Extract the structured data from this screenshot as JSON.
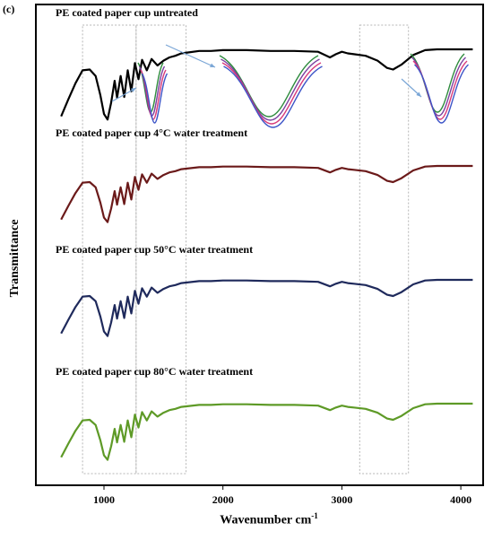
{
  "panel_label": "(c)",
  "colors": {
    "untreated": "#000000",
    "water_4C": "#6b1a1a",
    "water_50C": "#1f2a5c",
    "water_80C": "#5e9a27",
    "inset_lines": [
      "#2e8b3e",
      "#7b3fa0",
      "#d83a7a",
      "#3d55c8"
    ],
    "guide_box": "#b5b5b5",
    "arrow": "#7aa6d6"
  },
  "chart_data": {
    "type": "line",
    "title": "",
    "xlabel": "Wavenumber",
    "xlabel_unit": "cm",
    "xlabel_unit_exp": "-1",
    "ylabel": "Transmittance",
    "xlim": [
      600,
      4150
    ],
    "xticks": [
      1000,
      2000,
      3000,
      4000
    ],
    "y_ticks_shown": false,
    "grid": false,
    "guide_boxes": [
      [
        820,
        1270
      ],
      [
        1270,
        1690
      ],
      [
        3150,
        3560
      ]
    ],
    "insets": [
      "1000 region zoom",
      "1500 region zoom",
      "3400 region zoom"
    ],
    "series": [
      {
        "name": "PE coated paper cup untreated",
        "color_key": "untreated",
        "x": [
          640,
          700,
          760,
          820,
          880,
          930,
          970,
          1000,
          1030,
          1060,
          1090,
          1110,
          1140,
          1170,
          1200,
          1230,
          1260,
          1290,
          1320,
          1360,
          1400,
          1450,
          1500,
          1550,
          1600,
          1650,
          1700,
          1800,
          1900,
          2000,
          2200,
          2400,
          2600,
          2800,
          2900,
          2950,
          3000,
          3050,
          3100,
          3200,
          3300,
          3380,
          3430,
          3500,
          3600,
          3700,
          3800,
          3900,
          4000,
          4100
        ],
        "y": [
          0.12,
          0.33,
          0.53,
          0.69,
          0.7,
          0.62,
          0.38,
          0.15,
          0.08,
          0.29,
          0.56,
          0.35,
          0.62,
          0.36,
          0.69,
          0.43,
          0.78,
          0.58,
          0.82,
          0.69,
          0.83,
          0.75,
          0.81,
          0.85,
          0.87,
          0.9,
          0.91,
          0.93,
          0.93,
          0.94,
          0.94,
          0.93,
          0.93,
          0.92,
          0.85,
          0.89,
          0.92,
          0.9,
          0.89,
          0.87,
          0.81,
          0.72,
          0.7,
          0.76,
          0.88,
          0.94,
          0.95,
          0.95,
          0.95,
          0.95
        ]
      },
      {
        "name": "PE coated paper cup 4°C water treatment",
        "color_key": "water_4C",
        "x": [
          640,
          700,
          760,
          820,
          880,
          930,
          970,
          1000,
          1030,
          1060,
          1090,
          1110,
          1140,
          1170,
          1200,
          1230,
          1260,
          1290,
          1320,
          1360,
          1400,
          1450,
          1500,
          1550,
          1600,
          1650,
          1700,
          1800,
          1900,
          2000,
          2200,
          2400,
          2600,
          2800,
          2900,
          2950,
          3000,
          3050,
          3100,
          3200,
          3300,
          3380,
          3430,
          3500,
          3600,
          3700,
          3800,
          3900,
          4000,
          4100
        ],
        "y": [
          0.12,
          0.33,
          0.53,
          0.69,
          0.7,
          0.62,
          0.38,
          0.15,
          0.08,
          0.29,
          0.56,
          0.35,
          0.62,
          0.36,
          0.69,
          0.43,
          0.78,
          0.58,
          0.82,
          0.69,
          0.83,
          0.75,
          0.81,
          0.85,
          0.87,
          0.9,
          0.91,
          0.93,
          0.93,
          0.94,
          0.94,
          0.93,
          0.93,
          0.92,
          0.85,
          0.89,
          0.92,
          0.9,
          0.89,
          0.87,
          0.81,
          0.72,
          0.7,
          0.76,
          0.88,
          0.94,
          0.95,
          0.95,
          0.95,
          0.95
        ]
      },
      {
        "name": "PE coated paper cup 50°C water treatment",
        "color_key": "water_50C",
        "x": [
          640,
          700,
          760,
          820,
          880,
          930,
          970,
          1000,
          1030,
          1060,
          1090,
          1110,
          1140,
          1170,
          1200,
          1230,
          1260,
          1290,
          1320,
          1360,
          1400,
          1450,
          1500,
          1550,
          1600,
          1650,
          1700,
          1800,
          1900,
          2000,
          2200,
          2400,
          2600,
          2800,
          2900,
          2950,
          3000,
          3050,
          3100,
          3200,
          3300,
          3380,
          3430,
          3500,
          3600,
          3700,
          3800,
          3900,
          4000,
          4100
        ],
        "y": [
          0.12,
          0.33,
          0.53,
          0.69,
          0.7,
          0.62,
          0.38,
          0.15,
          0.08,
          0.29,
          0.56,
          0.35,
          0.62,
          0.36,
          0.69,
          0.43,
          0.78,
          0.58,
          0.82,
          0.69,
          0.83,
          0.75,
          0.81,
          0.85,
          0.87,
          0.9,
          0.91,
          0.93,
          0.93,
          0.94,
          0.94,
          0.93,
          0.93,
          0.92,
          0.85,
          0.89,
          0.92,
          0.9,
          0.89,
          0.87,
          0.81,
          0.72,
          0.7,
          0.76,
          0.88,
          0.94,
          0.95,
          0.95,
          0.95,
          0.95
        ]
      },
      {
        "name": "PE coated paper cup 80°C water treatment",
        "color_key": "water_80C",
        "x": [
          640,
          700,
          760,
          820,
          880,
          930,
          970,
          1000,
          1030,
          1060,
          1090,
          1110,
          1140,
          1170,
          1200,
          1230,
          1260,
          1290,
          1320,
          1360,
          1400,
          1450,
          1500,
          1550,
          1600,
          1650,
          1700,
          1800,
          1900,
          2000,
          2200,
          2400,
          2600,
          2800,
          2900,
          2950,
          3000,
          3050,
          3100,
          3200,
          3300,
          3380,
          3430,
          3500,
          3600,
          3700,
          3800,
          3900,
          4000,
          4100
        ],
        "y": [
          0.12,
          0.33,
          0.53,
          0.69,
          0.7,
          0.62,
          0.38,
          0.15,
          0.08,
          0.29,
          0.56,
          0.35,
          0.62,
          0.36,
          0.69,
          0.43,
          0.78,
          0.58,
          0.82,
          0.69,
          0.83,
          0.75,
          0.81,
          0.85,
          0.87,
          0.9,
          0.91,
          0.93,
          0.93,
          0.94,
          0.94,
          0.93,
          0.93,
          0.92,
          0.85,
          0.89,
          0.92,
          0.9,
          0.89,
          0.87,
          0.81,
          0.72,
          0.7,
          0.76,
          0.88,
          0.94,
          0.95,
          0.95,
          0.95,
          0.95
        ]
      }
    ]
  }
}
